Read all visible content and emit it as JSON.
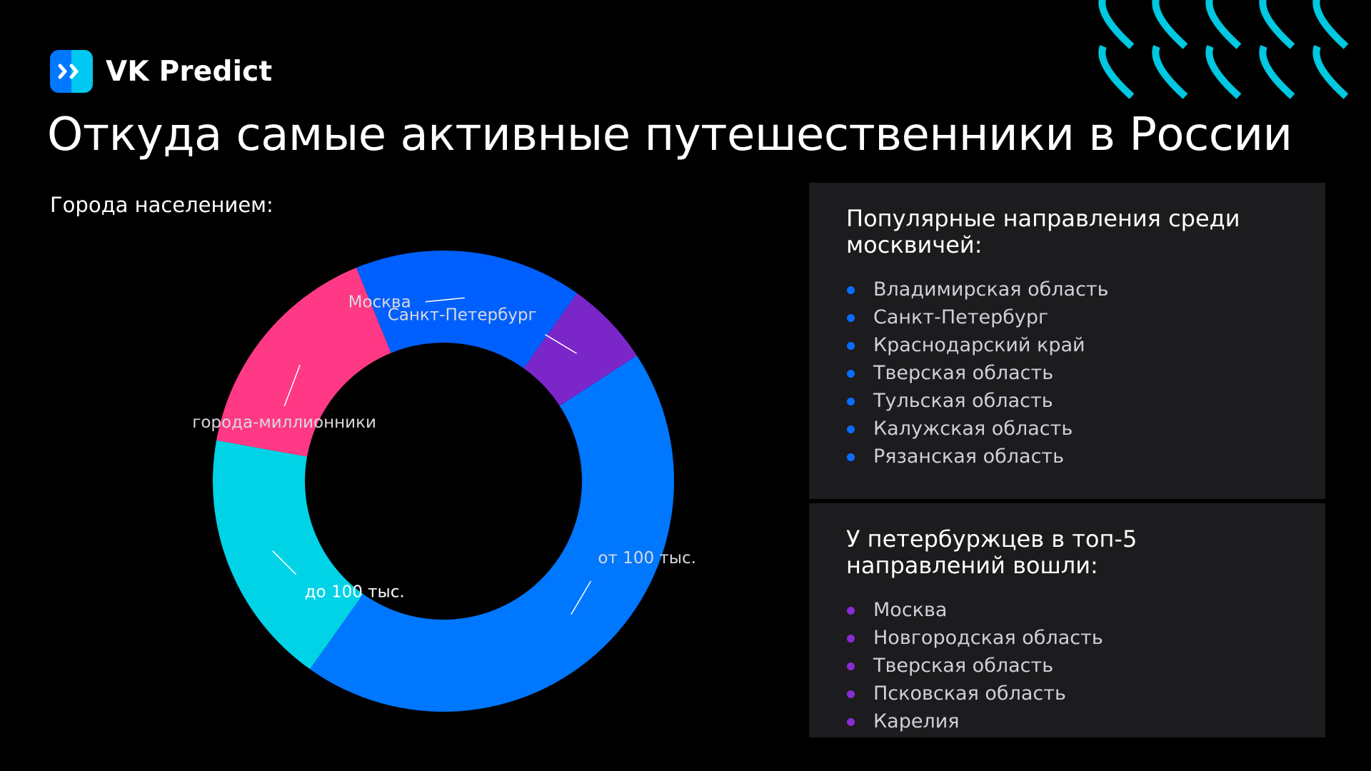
{
  "brand": {
    "name": "VK Predict",
    "logo_colors": [
      "#0077ff",
      "#00c8f0"
    ]
  },
  "title": "Откуда самые активные путешественники в России",
  "chart_data": {
    "type": "pie",
    "donut": true,
    "subtitle": "Города населением:",
    "categories": [
      "от 100 тыс.",
      "до 100 тыс.",
      "города-миллионники",
      "Москва",
      "Санкт-Петербург"
    ],
    "values": [
      44,
      18,
      16,
      16,
      6
    ],
    "colors": [
      "#0077ff",
      "#00d3e6",
      "#ff3985",
      "#005fff",
      "#7b26c9"
    ]
  },
  "panels": [
    {
      "title": "Популярные направления среди москвичей:",
      "bullet_color": "#0a6cff",
      "items": [
        "Владимирская область",
        "Санкт-Петербург",
        "Краснодарский край",
        "Тверская область",
        "Тульская область",
        "Калужская область",
        "Рязанская область"
      ]
    },
    {
      "title": "У петербуржцев в топ-5 направлений вошли:",
      "bullet_color": "#8a2bd4",
      "items": [
        "Москва",
        "Новгородская область",
        "Тверская область",
        "Псковская область",
        "Карелия"
      ]
    }
  ],
  "decoration_color": "#00c8e0"
}
